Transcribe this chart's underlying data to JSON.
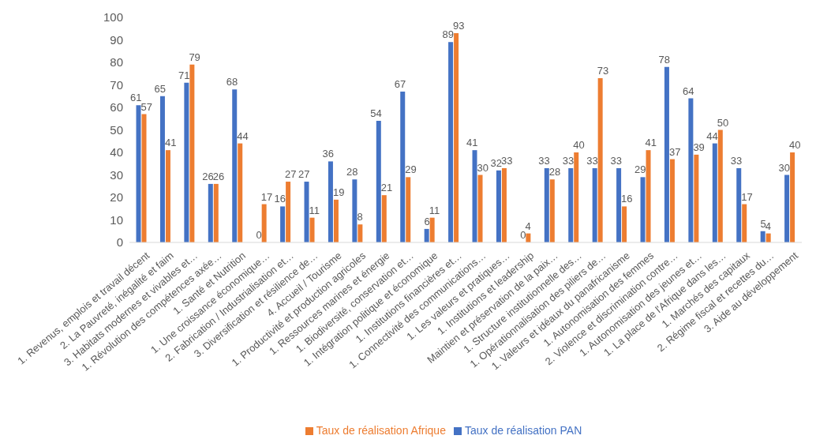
{
  "chart_data": {
    "type": "bar",
    "categories": [
      "1. Revenus, emplois et travail décent",
      "2. La Pauvreté, inégalité et faim",
      "3. Habitats modernes et vivables et…",
      "1. Révolution des compétences axée…",
      "1. Santé et Nutrition",
      "1. Une croissance économique…",
      "2. Fabrication / Industrialisation et…",
      "3. Diversification et résilience de…",
      "4. Accueil / Tourisme",
      "1. Productivité et production agricoles",
      "1. Ressources marines et énergie",
      "1. Biodiversité, conservation et…",
      "1. Intégration politique et économique",
      "1. Institutions financières et…",
      "1. Connectivité des communications…",
      "1. Les valeurs et pratiques…",
      "1. Institutions et leadership",
      "Maintien et préservation de la paix…",
      "1. Structure institutionnelle des…",
      "1. Opérationnalisation des piliers de…",
      "1. Valeurs et idéaux du panafricanisme",
      "1. Autonomisation des femmes",
      "2. Violence et discrimination contre…",
      "1. Autonomisation des jeunes et…",
      "1. La place de l'Afrique dans les…",
      "1. Marchés des capitaux",
      "2. Régime fiscal et recettes du…",
      "3. Aide au développement"
    ],
    "series": [
      {
        "name": "Taux de réalisation PAN",
        "color": "#4472c4",
        "values": [
          61,
          65,
          71,
          26,
          68,
          0,
          16,
          27,
          36,
          28,
          54,
          67,
          6,
          89,
          41,
          32,
          0,
          33,
          33,
          33,
          33,
          29,
          78,
          64,
          44,
          33,
          5,
          30
        ]
      },
      {
        "name": "Taux de réalisation Afrique",
        "color": "#ed7d31",
        "values": [
          57,
          41,
          79,
          26,
          44,
          17,
          27,
          11,
          19,
          8,
          21,
          29,
          11,
          93,
          30,
          33,
          4,
          28,
          40,
          73,
          16,
          41,
          37,
          39,
          50,
          17,
          4,
          40
        ]
      }
    ],
    "ylim": [
      0,
      100
    ],
    "yticks": [
      0,
      10,
      20,
      30,
      40,
      50,
      60,
      70,
      80,
      90,
      100
    ],
    "grid": false,
    "legend": "bottom",
    "data_labels": true
  }
}
